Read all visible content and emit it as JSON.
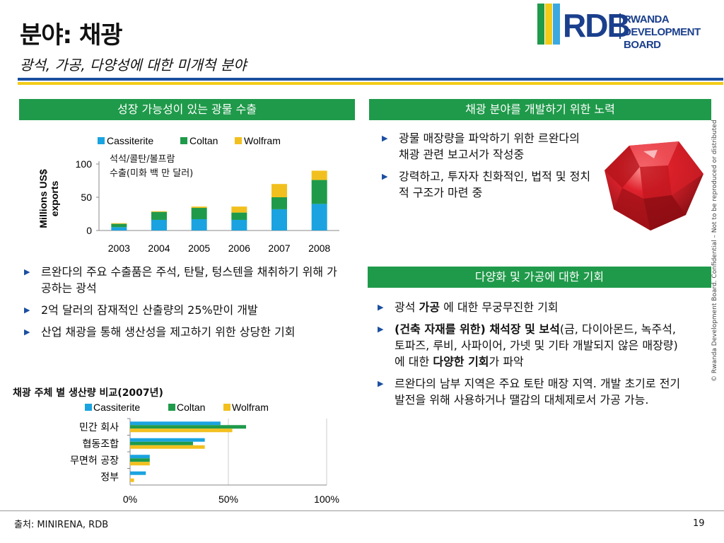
{
  "header": {
    "title": "분야: 채광",
    "subtitle": "광석, 가공, 다양성에 대한 미개척 분야"
  },
  "logo": {
    "rdb": "RDB",
    "line1": "RWANDA",
    "line2": "DEVELOPMENT BOARD",
    "colors": [
      "#1f9a4a",
      "#f2cc18",
      "#3aa9e0"
    ]
  },
  "left_panel": {
    "header": "성장 가능성이 있는 광물 수출",
    "chart_annotation_line1": "석석/콜탄/볼프람",
    "chart_annotation_line2": "수출(미화 백 만 달러)",
    "bullets": [
      "르완다의 주요 수출품은 주석, 탄탈, 텅스텐을 채취하기 위해 가공하는 광석",
      "2억 달러의 잠재적인 산출량의 25%만이 개발",
      "산업 채광을 통해 생산성을 제고하기 위한 상당한 기회"
    ]
  },
  "chart_data": [
    {
      "type": "bar",
      "stacked": true,
      "categories": [
        "2003",
        "2004",
        "2005",
        "2006",
        "2007",
        "2008"
      ],
      "series": [
        {
          "name": "Cassiterite",
          "color": "#1aa3e0",
          "values": [
            5,
            16,
            17,
            16,
            32,
            40
          ]
        },
        {
          "name": "Coltan",
          "color": "#1f9a4a",
          "values": [
            5,
            12,
            17,
            11,
            18,
            36
          ]
        },
        {
          "name": "Wolfram",
          "color": "#f2c01e",
          "values": [
            1,
            1,
            2,
            9,
            20,
            14
          ]
        }
      ],
      "ylabel": "Millions US$ exports",
      "ylim": [
        0,
        100
      ],
      "yticks": [
        "0",
        "50",
        "100"
      ],
      "legend": "top"
    },
    {
      "type": "bar",
      "orientation": "horizontal",
      "title": "채광 주체 별 생산량 비교(2007년)",
      "categories": [
        "민간 회사",
        "협동조합",
        "무면허 공장",
        "정부"
      ],
      "series": [
        {
          "name": "Cassiterite",
          "color": "#1aa3e0",
          "values": [
            46,
            38,
            10,
            8
          ]
        },
        {
          "name": "Coltan",
          "color": "#1f9a4a",
          "values": [
            59,
            32,
            10,
            0
          ]
        },
        {
          "name": "Wolfram",
          "color": "#f2c01e",
          "values": [
            52,
            38,
            10,
            2
          ]
        }
      ],
      "xlim": [
        0,
        100
      ],
      "xticks": [
        "0%",
        "50%",
        "100%"
      ],
      "legend": "top"
    }
  ],
  "right_panel": {
    "header1": "채광 분야를 개발하기 위한 노력",
    "bullets1": [
      "광물 매장량을 파악하기 위한 르완다의 채광 관련 보고서가 작성중",
      "강력하고, 투자자 친화적인, 법적 및 정치적 구조가 마련 중"
    ],
    "header2": "다양화 및 가공에 대한 기회",
    "b2_1_pre": "광석 ",
    "b2_1_bold": "가공",
    "b2_1_post": " 에 대한 무궁무진한 기회",
    "b2_2_bold": "(건축 자재를 위한) 채석장 및 보석",
    "b2_2_mid": "(금, 다이아몬드, 녹주석, 토파즈, 루비, 사파이어, 가넷 및 기타 개발되지 않은 매장량)에 대한 ",
    "b2_2_bold2": "다양한 기회",
    "b2_2_post": "가 파악",
    "b2_3": "르완다의 남부 지역은 주요 토탄 매장 지역. 개발 초기로 전기 발전을 위해 사용하거나 땔감의 대체제로서 가공 가능."
  },
  "side_note": "© Rwanda Development Board. Confidential – Not to be reproduced or distributed",
  "footer": {
    "source": "출처: MINIRENA, RDB",
    "page": "19"
  }
}
